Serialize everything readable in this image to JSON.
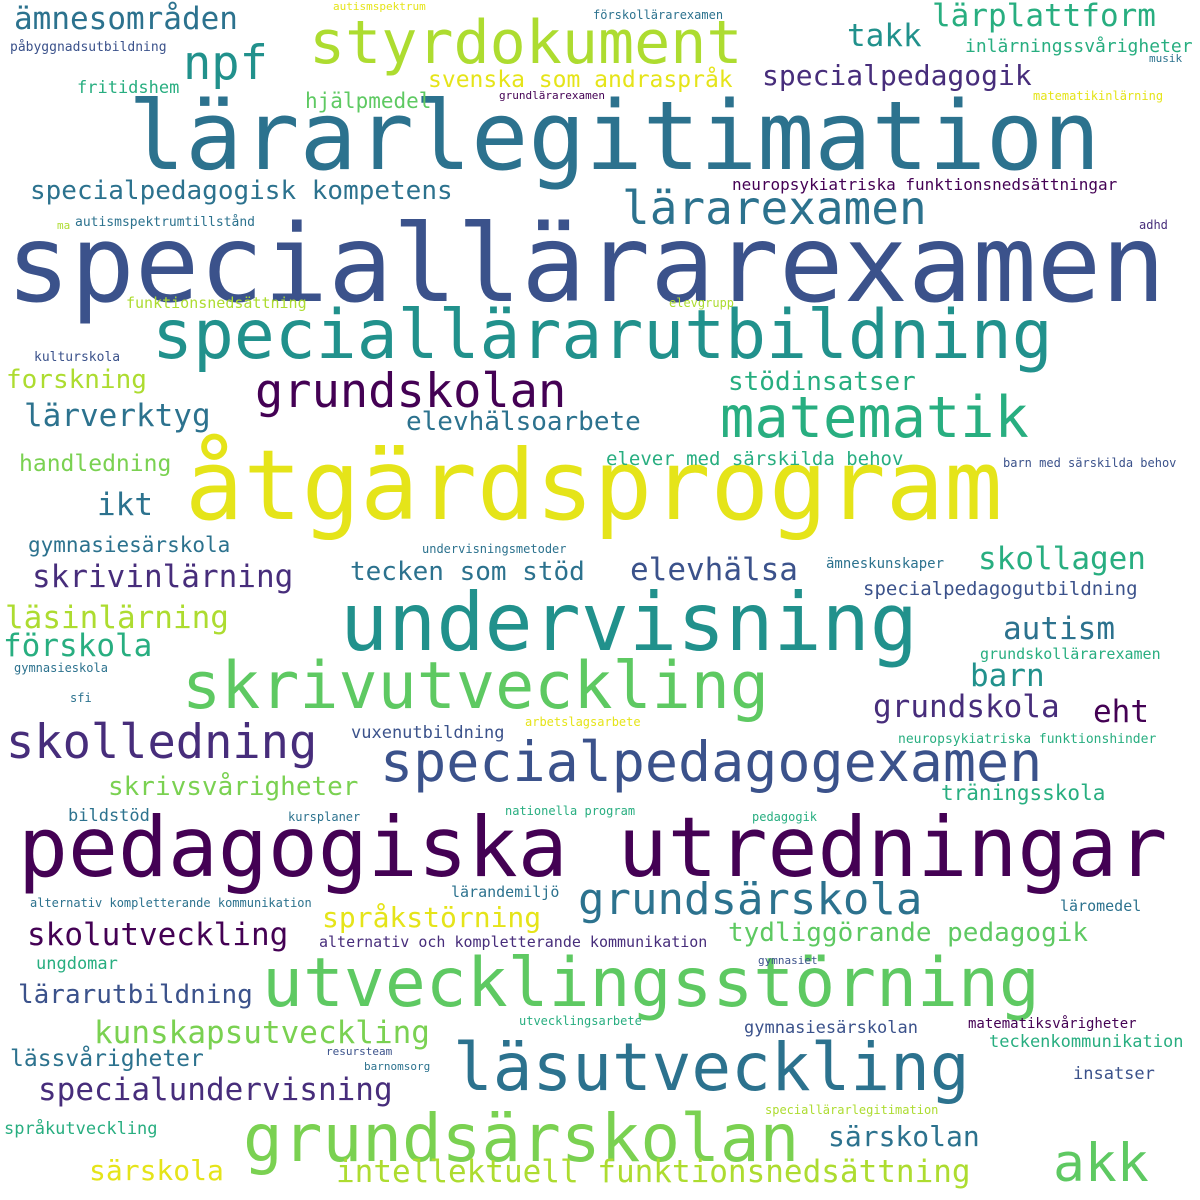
{
  "words": [
    {
      "text": "speciallärarexamen",
      "color": "#3b528b"
    },
    {
      "text": "lärarlegitimation",
      "color": "#2c728e"
    },
    {
      "text": "åtgärdsprogram",
      "color": "#e5e419"
    },
    {
      "text": "pedagogiska utredningar",
      "color": "#440154"
    },
    {
      "text": "undervisning",
      "color": "#21918c"
    },
    {
      "text": "speciallärarutbildning",
      "color": "#21918c"
    },
    {
      "text": "utvecklingsstörning",
      "color": "#5ec962"
    },
    {
      "text": "skrivutveckling",
      "color": "#5ec962"
    },
    {
      "text": "läsutveckling",
      "color": "#2c728e"
    },
    {
      "text": "grundsärskolan",
      "color": "#7ad151"
    },
    {
      "text": "styrdokument",
      "color": "#addc30"
    },
    {
      "text": "specialpedagogexamen",
      "color": "#3b528b"
    },
    {
      "text": "matematik",
      "color": "#28ae80"
    },
    {
      "text": "grundskolan",
      "color": "#440154"
    },
    {
      "text": "lärarexamen",
      "color": "#2c728e"
    },
    {
      "text": "skolledning",
      "color": "#472d7b"
    },
    {
      "text": "grundsärskola",
      "color": "#2c728e"
    },
    {
      "text": "npf",
      "color": "#21918c"
    },
    {
      "text": "akk",
      "color": "#5ec962"
    },
    {
      "text": "specialpedagogisk kompetens",
      "color": "#2c728e"
    },
    {
      "text": "specialpedagogik",
      "color": "#472d7b"
    },
    {
      "text": "intellektuell funktionsnedsättning",
      "color": "#addc30"
    },
    {
      "text": "specialundervisning",
      "color": "#472d7b"
    },
    {
      "text": "kunskapsutveckling",
      "color": "#7ad151"
    },
    {
      "text": "skolutveckling",
      "color": "#440154"
    },
    {
      "text": "skrivinlärning",
      "color": "#472d7b"
    },
    {
      "text": "läsinlärning",
      "color": "#addc30"
    },
    {
      "text": "förskola",
      "color": "#28ae80"
    },
    {
      "text": "skollagen",
      "color": "#28ae80"
    },
    {
      "text": "elevhälsa",
      "color": "#3b528b"
    },
    {
      "text": "autism",
      "color": "#2c728e"
    },
    {
      "text": "barn",
      "color": "#21918c"
    },
    {
      "text": "grundskola",
      "color": "#472d7b"
    },
    {
      "text": "eht",
      "color": "#440154"
    },
    {
      "text": "takk",
      "color": "#21918c"
    },
    {
      "text": "lärplattform",
      "color": "#28ae80"
    },
    {
      "text": "ämnesområden",
      "color": "#2c728e"
    },
    {
      "text": "svenska som andraspråk",
      "color": "#e5e419"
    },
    {
      "text": "språkstörning",
      "color": "#e5e419"
    },
    {
      "text": "tydliggörande pedagogik",
      "color": "#5ec962"
    },
    {
      "text": "särskolan",
      "color": "#2c728e"
    },
    {
      "text": "särskola",
      "color": "#e5e419"
    },
    {
      "text": "lärarutbildning",
      "color": "#3b528b"
    },
    {
      "text": "lässvårigheter",
      "color": "#2c728e"
    },
    {
      "text": "stödinsatser",
      "color": "#28ae80"
    },
    {
      "text": "elevhälsoarbete",
      "color": "#2c728e"
    },
    {
      "text": "lärverktyg",
      "color": "#2c728e"
    },
    {
      "text": "forskning",
      "color": "#addc30"
    },
    {
      "text": "ikt",
      "color": "#2c728e"
    },
    {
      "text": "tecken som stöd",
      "color": "#2c728e"
    },
    {
      "text": "skrivsvårigheter",
      "color": "#7ad151"
    },
    {
      "text": "handledning",
      "color": "#7ad151"
    },
    {
      "text": "elever med särskilda behov",
      "color": "#28ae80"
    },
    {
      "text": "gymnasiesärskola",
      "color": "#2c728e"
    },
    {
      "text": "hjälpmedel",
      "color": "#5ec962"
    },
    {
      "text": "fritidshem",
      "color": "#28ae80"
    },
    {
      "text": "inlärningssvårigheter",
      "color": "#28ae80"
    },
    {
      "text": "neuropsykiatriska funktionsnedsättningar",
      "color": "#440154"
    },
    {
      "text": "specialpedagogutbildning",
      "color": "#3b528b"
    },
    {
      "text": "träningsskola",
      "color": "#28ae80"
    },
    {
      "text": "gymnasiesärskolan",
      "color": "#3b528b"
    },
    {
      "text": "teckenkommunikation",
      "color": "#28ae80"
    },
    {
      "text": "insatser",
      "color": "#3b528b"
    },
    {
      "text": "matematiksvårigheter",
      "color": "#440154"
    },
    {
      "text": "grundskollärarexamen",
      "color": "#28ae80"
    },
    {
      "text": "vuxenutbildning",
      "color": "#3b528b"
    },
    {
      "text": "alternativ och kompletterande kommunikation",
      "color": "#472d7b"
    },
    {
      "text": "ungdomar",
      "color": "#28ae80"
    },
    {
      "text": "språkutveckling",
      "color": "#28ae80"
    },
    {
      "text": "bildstöd",
      "color": "#2c728e"
    },
    {
      "text": "lärandemiljö",
      "color": "#2c728e"
    },
    {
      "text": "läromedel",
      "color": "#2c728e"
    },
    {
      "text": "ämneskunskaper",
      "color": "#2c728e"
    },
    {
      "text": "undervisningsmetoder",
      "color": "#2c728e"
    },
    {
      "text": "neuropsykiatriska funktionshinder",
      "color": "#28ae80"
    },
    {
      "text": "barn med särskilda behov",
      "color": "#3b528b"
    },
    {
      "text": "kulturskola",
      "color": "#3b528b"
    },
    {
      "text": "påbyggnadsutbildning",
      "color": "#3b528b"
    },
    {
      "text": "autismspektrumtillstånd",
      "color": "#2c728e"
    },
    {
      "text": "funktionsnedsättning",
      "color": "#addc30"
    },
    {
      "text": "elevgrupp",
      "color": "#addc30"
    },
    {
      "text": "adhd",
      "color": "#472d7b"
    },
    {
      "text": "musik",
      "color": "#2c728e"
    },
    {
      "text": "matematikinlärning",
      "color": "#e5e419"
    },
    {
      "text": "grundlärarexamen",
      "color": "#440154"
    },
    {
      "text": "förskollärarexamen",
      "color": "#2c728e"
    },
    {
      "text": "autismspektrum",
      "color": "#e5e419"
    },
    {
      "text": "ma",
      "color": "#addc30"
    },
    {
      "text": "gymnasieskola",
      "color": "#2c728e"
    },
    {
      "text": "sfi",
      "color": "#2c728e"
    },
    {
      "text": "arbetslagsarbete",
      "color": "#e5e419"
    },
    {
      "text": "nationella program",
      "color": "#28ae80"
    },
    {
      "text": "pedagogik",
      "color": "#28ae80"
    },
    {
      "text": "kursplaner",
      "color": "#2c728e"
    },
    {
      "text": "alternativ kompletterande kommunikation",
      "color": "#2c728e"
    },
    {
      "text": "gymnasiet",
      "color": "#3b528b"
    },
    {
      "text": "utvecklingsarbete",
      "color": "#28ae80"
    },
    {
      "text": "resursteam",
      "color": "#3b528b"
    },
    {
      "text": "barnomsorg",
      "color": "#2c728e"
    },
    {
      "text": "speciallärarlegitimation",
      "color": "#addc30"
    }
  ]
}
